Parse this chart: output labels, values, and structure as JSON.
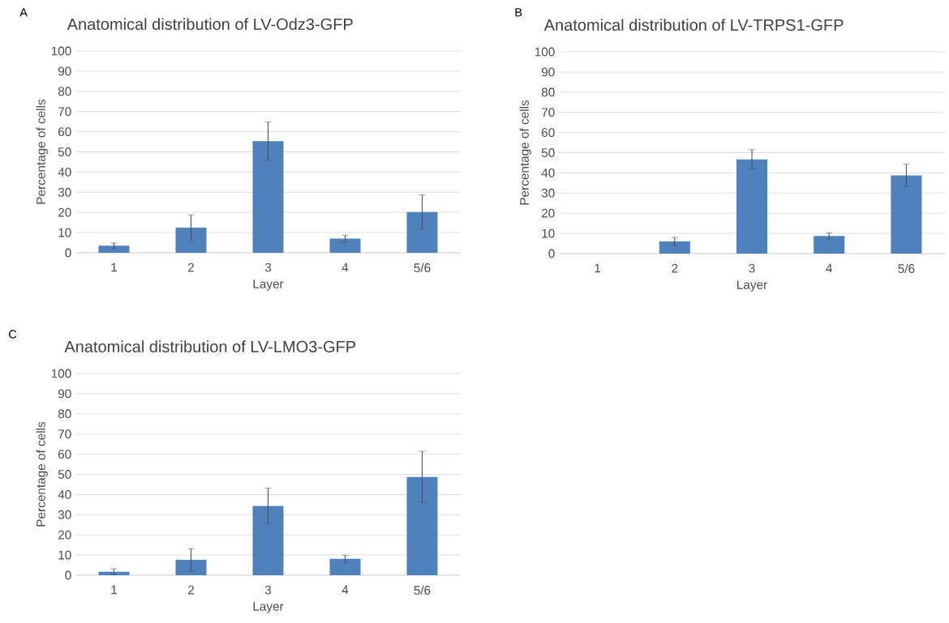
{
  "chart_data": [
    {
      "type": "bar",
      "title": "Anatomical distribution of LV-Odz3-GFP",
      "xlabel": "Layer",
      "ylabel": "Percentage of cells",
      "categories": [
        "1",
        "2",
        "3",
        "4",
        "5/6"
      ],
      "values": [
        3.5,
        12.5,
        55.3,
        7,
        20.2
      ],
      "errors": [
        1.3,
        6.3,
        9.5,
        1.7,
        8.5
      ],
      "color": "#4f81bd",
      "ylim": [
        0,
        100
      ],
      "yticks": [
        0,
        10,
        20,
        30,
        40,
        50,
        60,
        70,
        80,
        90,
        100
      ],
      "grid": "y",
      "annotations": [
        "A"
      ]
    },
    {
      "type": "bar",
      "title": "Anatomical distribution of LV-TRPS1-GFP",
      "xlabel": "Layer",
      "ylabel": "Percentage of cells",
      "categories": [
        "1",
        "2",
        "3",
        "4",
        "5/6"
      ],
      "values": [
        0,
        6,
        46.7,
        8.7,
        38.8
      ],
      "errors": [
        null,
        2,
        4.8,
        1.5,
        5.5
      ],
      "color": "#4f81bd",
      "ylim": [
        0,
        100
      ],
      "yticks": [
        0,
        10,
        20,
        30,
        40,
        50,
        60,
        70,
        80,
        90,
        100
      ],
      "grid": "y",
      "annotations": [
        "B"
      ]
    },
    {
      "type": "bar",
      "title": "Anatomical distribution of LV-LMO3-GFP",
      "xlabel": "Layer",
      "ylabel": "Percentage of cells",
      "categories": [
        "1",
        "2",
        "3",
        "4",
        "5/6"
      ],
      "values": [
        1.7,
        7.6,
        34.3,
        8.1,
        48.7
      ],
      "errors": [
        1.5,
        5.5,
        8.8,
        1.8,
        12.7
      ],
      "color": "#4f81bd",
      "ylim": [
        0,
        100
      ],
      "yticks": [
        0,
        10,
        20,
        30,
        40,
        50,
        60,
        70,
        80,
        90,
        100
      ],
      "grid": "y",
      "annotations": [
        "C"
      ]
    }
  ]
}
